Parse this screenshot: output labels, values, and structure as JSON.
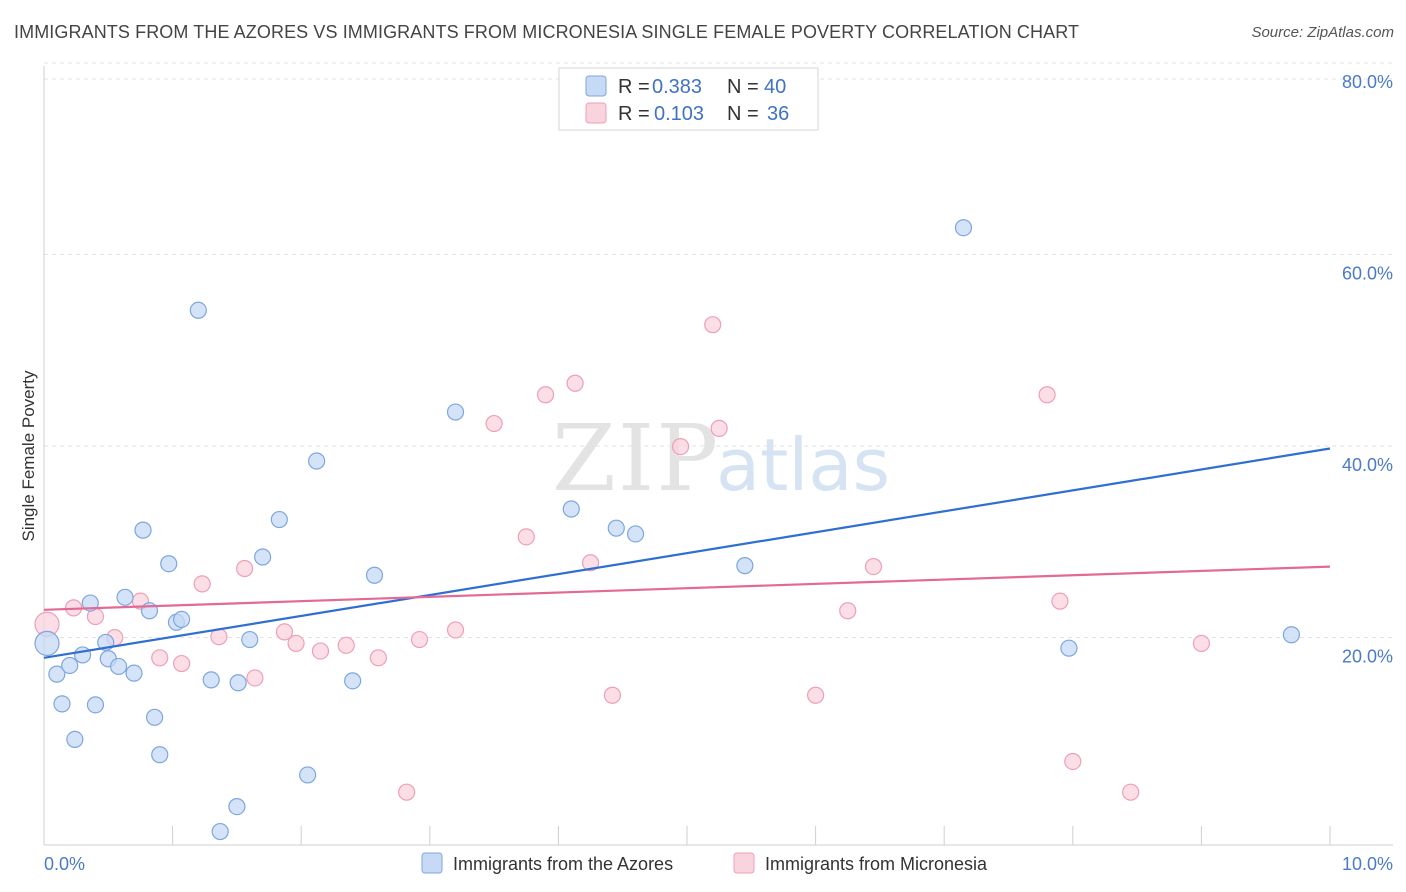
{
  "title": "IMMIGRANTS FROM THE AZORES VS IMMIGRANTS FROM MICRONESIA SINGLE FEMALE POVERTY CORRELATION CHART",
  "source": "Source: ZipAtlas.com",
  "watermark": {
    "zip": "ZIP",
    "atlas": "atlas"
  },
  "legend": [
    {
      "r_label": "R = ",
      "r_value": "0.383",
      "n_label": "N = ",
      "n_value": "40",
      "color": "#a9c8f0"
    },
    {
      "r_label": "R = ",
      "r_value": "0.103",
      "n_label": "N = ",
      "n_value": "36",
      "color": "#f6b6c9"
    }
  ],
  "colors": {
    "azores_fill": "#c6daf5",
    "azores_stroke": "#7ea6de",
    "azores_line": "#2f6fd1",
    "micronesia_fill": "#f9d3de",
    "micronesia_stroke": "#ee9fb7",
    "micronesia_line": "#e26a94"
  },
  "chart_data": {
    "type": "scatter",
    "title": "IMMIGRANTS FROM THE AZORES VS IMMIGRANTS FROM MICRONESIA SINGLE FEMALE POVERTY CORRELATION CHART",
    "xlabel": "",
    "ylabel": "Single Female Poverty",
    "xlim": [
      0,
      10
    ],
    "ylim": [
      0,
      80
    ],
    "x_tick_labels": [
      "0.0%",
      "10.0%"
    ],
    "y_ticks": [
      20,
      40,
      60,
      80
    ],
    "y_tick_labels": [
      "20.0%",
      "40.0%",
      "60.0%",
      "80.0%"
    ],
    "grid": true,
    "series": [
      {
        "name": "Immigrants from the Azores",
        "trend": [
          [
            0,
            19.5
          ],
          [
            10,
            41.3
          ]
        ],
        "points": [
          [
            0.0,
            21.0
          ],
          [
            0.1,
            17.8
          ],
          [
            0.14,
            14.7
          ],
          [
            0.2,
            18.7
          ],
          [
            0.24,
            11.0
          ],
          [
            0.3,
            19.8
          ],
          [
            0.36,
            25.2
          ],
          [
            0.4,
            14.6
          ],
          [
            0.48,
            21.1
          ],
          [
            0.5,
            19.4
          ],
          [
            0.58,
            18.6
          ],
          [
            0.63,
            25.8
          ],
          [
            0.7,
            17.9
          ],
          [
            0.77,
            32.8
          ],
          [
            0.82,
            24.4
          ],
          [
            0.86,
            13.3
          ],
          [
            0.9,
            9.4
          ],
          [
            0.97,
            29.3
          ],
          [
            1.03,
            23.2
          ],
          [
            1.07,
            23.5
          ],
          [
            1.2,
            55.7
          ],
          [
            1.3,
            17.2
          ],
          [
            1.37,
            1.4
          ],
          [
            1.5,
            4.0
          ],
          [
            1.51,
            16.9
          ],
          [
            1.6,
            21.4
          ],
          [
            1.7,
            30.0
          ],
          [
            1.83,
            33.9
          ],
          [
            2.05,
            7.3
          ],
          [
            2.12,
            40.0
          ],
          [
            2.4,
            17.1
          ],
          [
            2.57,
            28.1
          ],
          [
            3.2,
            45.1
          ],
          [
            4.1,
            35.0
          ],
          [
            4.45,
            33.0
          ],
          [
            4.6,
            32.4
          ],
          [
            5.45,
            29.1
          ],
          [
            7.15,
            64.3
          ],
          [
            7.97,
            20.5
          ],
          [
            9.7,
            21.9
          ]
        ]
      },
      {
        "name": "Immigrants from Micronesia",
        "trend": [
          [
            0,
            24.5
          ],
          [
            10,
            29.0
          ]
        ],
        "points": [
          [
            0.0,
            23.0
          ],
          [
            0.23,
            24.7
          ],
          [
            0.4,
            23.8
          ],
          [
            0.55,
            21.6
          ],
          [
            0.75,
            25.4
          ],
          [
            0.9,
            19.5
          ],
          [
            1.07,
            18.9
          ],
          [
            1.23,
            27.2
          ],
          [
            1.36,
            21.7
          ],
          [
            1.56,
            28.8
          ],
          [
            1.64,
            17.4
          ],
          [
            1.87,
            22.2
          ],
          [
            1.96,
            21.0
          ],
          [
            2.15,
            20.2
          ],
          [
            2.35,
            20.8
          ],
          [
            2.6,
            19.5
          ],
          [
            2.82,
            5.5
          ],
          [
            2.92,
            21.4
          ],
          [
            3.2,
            22.4
          ],
          [
            3.5,
            43.9
          ],
          [
            3.75,
            32.1
          ],
          [
            3.9,
            46.9
          ],
          [
            4.13,
            48.1
          ],
          [
            4.25,
            29.4
          ],
          [
            4.42,
            15.6
          ],
          [
            4.95,
            41.5
          ],
          [
            5.2,
            54.2
          ],
          [
            5.25,
            43.4
          ],
          [
            6.0,
            15.6
          ],
          [
            6.25,
            24.4
          ],
          [
            6.45,
            29.0
          ],
          [
            7.8,
            46.9
          ],
          [
            7.9,
            25.4
          ],
          [
            8.0,
            8.7
          ],
          [
            8.45,
            5.5
          ],
          [
            9.0,
            21.0
          ]
        ]
      }
    ]
  }
}
